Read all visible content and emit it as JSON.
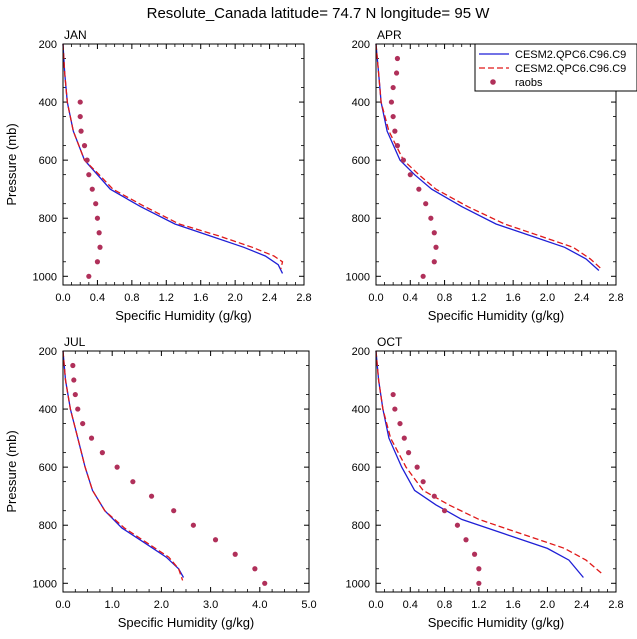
{
  "title": "Resolute_Canada  latitude= 74.7 N longitude= 95 W",
  "legend": {
    "entries": [
      {
        "label": "CESM2.QPC6.C96.C9",
        "color": "#1f1fd6",
        "style": "solid"
      },
      {
        "label": "CESM2.QPC6.C96.C9",
        "color": "#e01818",
        "style": "dashed"
      },
      {
        "label": "raobs",
        "color": "#b0305a",
        "style": "dots"
      }
    ]
  },
  "colors": {
    "model_solid": "#1f1fd6",
    "model_dashed": "#e01818",
    "raobs": "#b0305a"
  },
  "chart_data": [
    {
      "type": "line",
      "title": "JAN",
      "xlabel": "Specific Humidity (g/kg)",
      "ylabel": "Pressure (mb)",
      "xlim": [
        0,
        2.8
      ],
      "ylim": [
        200,
        1030
      ],
      "y_inverted": true,
      "xticks": [
        "0.0",
        "0.4",
        "0.8",
        "1.2",
        "1.6",
        "2.0",
        "2.4",
        "2.8"
      ],
      "yticks": [
        "200",
        "400",
        "600",
        "800",
        "1000"
      ],
      "series": [
        {
          "style": "solid",
          "points": [
            [
              0.0,
              200
            ],
            [
              0.02,
              300
            ],
            [
              0.05,
              400
            ],
            [
              0.12,
              500
            ],
            [
              0.25,
              600
            ],
            [
              0.4,
              650
            ],
            [
              0.55,
              700
            ],
            [
              0.9,
              760
            ],
            [
              1.3,
              820
            ],
            [
              1.7,
              860
            ],
            [
              2.1,
              900
            ],
            [
              2.35,
              930
            ],
            [
              2.5,
              960
            ],
            [
              2.55,
              990
            ]
          ]
        },
        {
          "style": "dashed",
          "points": [
            [
              0.0,
              200
            ],
            [
              0.02,
              300
            ],
            [
              0.05,
              400
            ],
            [
              0.12,
              500
            ],
            [
              0.25,
              600
            ],
            [
              0.42,
              650
            ],
            [
              0.58,
              700
            ],
            [
              0.95,
              760
            ],
            [
              1.35,
              820
            ],
            [
              1.8,
              860
            ],
            [
              2.2,
              900
            ],
            [
              2.45,
              930
            ],
            [
              2.55,
              950
            ],
            [
              2.53,
              975
            ]
          ]
        },
        {
          "style": "dots",
          "points": [
            [
              0.2,
              400
            ],
            [
              0.2,
              450
            ],
            [
              0.21,
              500
            ],
            [
              0.25,
              550
            ],
            [
              0.28,
              600
            ],
            [
              0.3,
              650
            ],
            [
              0.34,
              700
            ],
            [
              0.38,
              750
            ],
            [
              0.4,
              800
            ],
            [
              0.42,
              850
            ],
            [
              0.43,
              900
            ],
            [
              0.4,
              950
            ],
            [
              0.3,
              1000
            ]
          ]
        }
      ]
    },
    {
      "type": "line",
      "title": "APR",
      "xlabel": "Specific Humidity (g/kg)",
      "ylabel": "",
      "xlim": [
        0,
        2.8
      ],
      "ylim": [
        200,
        1030
      ],
      "y_inverted": true,
      "xticks": [
        "0.0",
        "0.4",
        "0.8",
        "1.2",
        "1.6",
        "2.0",
        "2.4",
        "2.8"
      ],
      "yticks": [
        "200",
        "400",
        "600",
        "800",
        "1000"
      ],
      "series": [
        {
          "style": "solid",
          "points": [
            [
              0.0,
              200
            ],
            [
              0.03,
              300
            ],
            [
              0.06,
              400
            ],
            [
              0.13,
              500
            ],
            [
              0.28,
              600
            ],
            [
              0.45,
              650
            ],
            [
              0.65,
              700
            ],
            [
              1.0,
              760
            ],
            [
              1.4,
              820
            ],
            [
              1.8,
              860
            ],
            [
              2.2,
              900
            ],
            [
              2.45,
              940
            ],
            [
              2.6,
              980
            ]
          ]
        },
        {
          "style": "dashed",
          "points": [
            [
              0.0,
              200
            ],
            [
              0.03,
              300
            ],
            [
              0.06,
              400
            ],
            [
              0.15,
              500
            ],
            [
              0.32,
              600
            ],
            [
              0.5,
              650
            ],
            [
              0.7,
              700
            ],
            [
              1.07,
              760
            ],
            [
              1.5,
              820
            ],
            [
              1.9,
              860
            ],
            [
              2.3,
              900
            ],
            [
              2.5,
              940
            ],
            [
              2.63,
              975
            ]
          ]
        },
        {
          "style": "dots",
          "points": [
            [
              0.25,
              250
            ],
            [
              0.24,
              300
            ],
            [
              0.2,
              350
            ],
            [
              0.18,
              400
            ],
            [
              0.2,
              450
            ],
            [
              0.22,
              500
            ],
            [
              0.25,
              550
            ],
            [
              0.32,
              600
            ],
            [
              0.4,
              650
            ],
            [
              0.5,
              700
            ],
            [
              0.58,
              750
            ],
            [
              0.64,
              800
            ],
            [
              0.68,
              850
            ],
            [
              0.7,
              900
            ],
            [
              0.68,
              950
            ],
            [
              0.55,
              1000
            ]
          ]
        }
      ]
    },
    {
      "type": "line",
      "title": "JUL",
      "xlabel": "Specific Humidity (g/kg)",
      "ylabel": "Pressure (mb)",
      "xlim": [
        0,
        5.0
      ],
      "ylim": [
        200,
        1030
      ],
      "y_inverted": true,
      "xticks": [
        "0.0",
        "1.0",
        "2.0",
        "3.0",
        "4.0",
        "5.0"
      ],
      "yticks": [
        "200",
        "400",
        "600",
        "800",
        "1000"
      ],
      "series": [
        {
          "style": "solid",
          "points": [
            [
              0.0,
              200
            ],
            [
              0.05,
              300
            ],
            [
              0.15,
              400
            ],
            [
              0.3,
              500
            ],
            [
              0.45,
              600
            ],
            [
              0.6,
              680
            ],
            [
              0.85,
              750
            ],
            [
              1.2,
              810
            ],
            [
              1.65,
              860
            ],
            [
              2.1,
              910
            ],
            [
              2.35,
              950
            ],
            [
              2.45,
              980
            ]
          ]
        },
        {
          "style": "dashed",
          "points": [
            [
              0.0,
              200
            ],
            [
              0.05,
              300
            ],
            [
              0.15,
              400
            ],
            [
              0.3,
              500
            ],
            [
              0.45,
              600
            ],
            [
              0.6,
              680
            ],
            [
              0.85,
              750
            ],
            [
              1.25,
              810
            ],
            [
              1.7,
              860
            ],
            [
              2.15,
              910
            ],
            [
              2.35,
              950
            ],
            [
              2.43,
              990
            ]
          ]
        },
        {
          "style": "dots",
          "points": [
            [
              0.2,
              250
            ],
            [
              0.22,
              300
            ],
            [
              0.25,
              350
            ],
            [
              0.3,
              400
            ],
            [
              0.4,
              450
            ],
            [
              0.58,
              500
            ],
            [
              0.8,
              550
            ],
            [
              1.1,
              600
            ],
            [
              1.42,
              650
            ],
            [
              1.8,
              700
            ],
            [
              2.25,
              750
            ],
            [
              2.65,
              800
            ],
            [
              3.1,
              850
            ],
            [
              3.5,
              900
            ],
            [
              3.9,
              950
            ],
            [
              4.1,
              1000
            ]
          ]
        }
      ]
    },
    {
      "type": "line",
      "title": "OCT",
      "xlabel": "Specific Humidity (g/kg)",
      "ylabel": "",
      "xlim": [
        0,
        2.8
      ],
      "ylim": [
        200,
        1030
      ],
      "y_inverted": true,
      "xticks": [
        "0.0",
        "0.4",
        "0.8",
        "1.2",
        "1.6",
        "2.0",
        "2.4",
        "2.8"
      ],
      "yticks": [
        "200",
        "400",
        "600",
        "800",
        "1000"
      ],
      "series": [
        {
          "style": "solid",
          "points": [
            [
              0.0,
              200
            ],
            [
              0.03,
              300
            ],
            [
              0.08,
              400
            ],
            [
              0.15,
              500
            ],
            [
              0.3,
              600
            ],
            [
              0.45,
              680
            ],
            [
              0.7,
              730
            ],
            [
              1.0,
              780
            ],
            [
              1.5,
              830
            ],
            [
              2.0,
              880
            ],
            [
              2.25,
              920
            ],
            [
              2.42,
              980
            ]
          ]
        },
        {
          "style": "dashed",
          "points": [
            [
              0.0,
              200
            ],
            [
              0.03,
              300
            ],
            [
              0.08,
              400
            ],
            [
              0.17,
              500
            ],
            [
              0.35,
              600
            ],
            [
              0.55,
              680
            ],
            [
              0.85,
              730
            ],
            [
              1.2,
              780
            ],
            [
              1.7,
              830
            ],
            [
              2.2,
              880
            ],
            [
              2.45,
              920
            ],
            [
              2.65,
              970
            ]
          ]
        },
        {
          "style": "dots",
          "points": [
            [
              0.2,
              350
            ],
            [
              0.22,
              400
            ],
            [
              0.28,
              450
            ],
            [
              0.33,
              500
            ],
            [
              0.38,
              550
            ],
            [
              0.48,
              600
            ],
            [
              0.55,
              650
            ],
            [
              0.68,
              700
            ],
            [
              0.8,
              750
            ],
            [
              0.95,
              800
            ],
            [
              1.05,
              850
            ],
            [
              1.15,
              900
            ],
            [
              1.2,
              950
            ],
            [
              1.2,
              1000
            ]
          ]
        }
      ]
    }
  ]
}
